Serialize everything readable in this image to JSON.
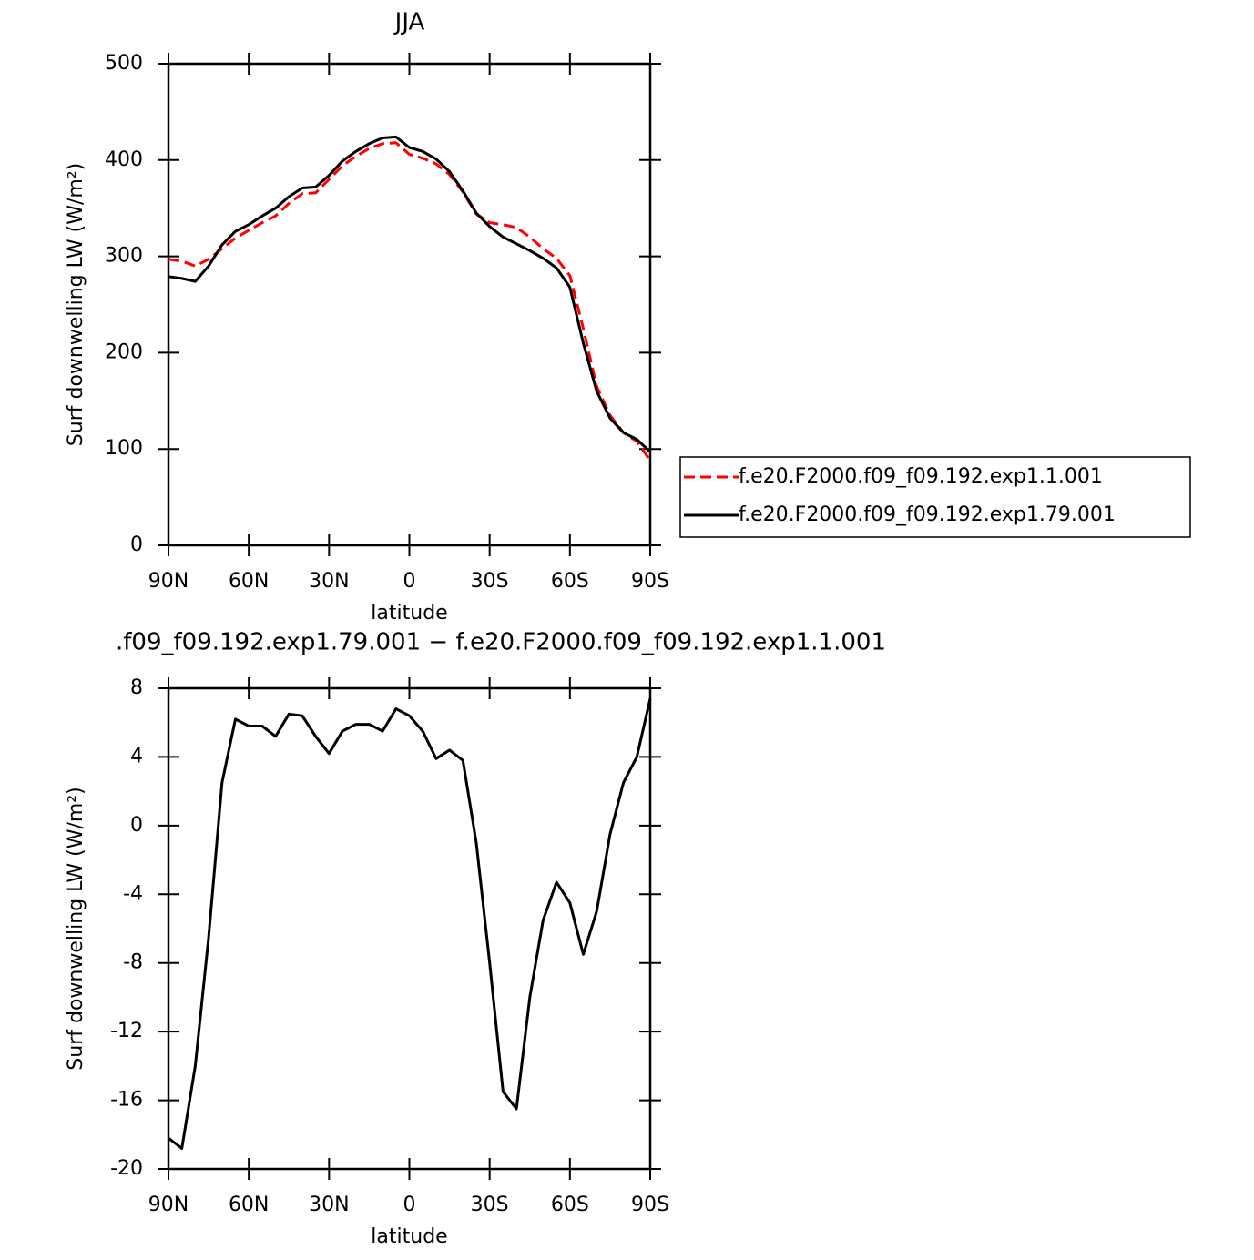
{
  "chart_data": [
    {
      "type": "line",
      "title": "JJA",
      "xlabel": "latitude",
      "ylabel": "Surf downwelling LW (W/m²)",
      "x": [
        90,
        85,
        80,
        75,
        70,
        65,
        60,
        55,
        50,
        45,
        40,
        35,
        30,
        25,
        20,
        15,
        10,
        5,
        0,
        -5,
        -10,
        -15,
        -20,
        -25,
        -30,
        -35,
        -40,
        -45,
        -50,
        -55,
        -60,
        -65,
        -70,
        -75,
        -80,
        -85,
        -90
      ],
      "series": [
        {
          "name": "f.e20.F2000.f09_f09.192.exp1.1.001",
          "color": "#ff0000",
          "line_style": "dashed",
          "values": [
            297,
            295,
            290,
            297,
            308,
            319,
            327,
            335,
            342,
            355,
            365,
            366,
            380,
            394,
            404,
            412,
            417,
            418,
            406,
            402,
            396,
            385,
            367,
            344,
            335,
            333,
            330,
            320,
            308,
            298,
            280,
            225,
            165,
            135,
            117,
            108,
            88
          ]
        },
        {
          "name": "f.e20.F2000.f09_f09.192.exp1.79.001",
          "color": "#000000",
          "line_style": "solid",
          "values": [
            279,
            277,
            274,
            290,
            312,
            326,
            333,
            342,
            350,
            362,
            371,
            372,
            384,
            399,
            409,
            417,
            423,
            424,
            413,
            409,
            401,
            388,
            368,
            345,
            331,
            320,
            313,
            306,
            298,
            288,
            268,
            210,
            160,
            132,
            117,
            110,
            97
          ]
        }
      ],
      "xlim": [
        90,
        -90
      ],
      "xticks": [
        {
          "value": 90,
          "label": "90N"
        },
        {
          "value": 60,
          "label": "60N"
        },
        {
          "value": 30,
          "label": "30N"
        },
        0,
        {
          "value": -30,
          "label": "30S"
        },
        {
          "value": -60,
          "label": "60S"
        },
        {
          "value": -90,
          "label": "90S"
        }
      ],
      "ylim": [
        0,
        500
      ],
      "yticks": [
        0,
        100,
        200,
        300,
        400,
        500
      ],
      "grid": false,
      "legend": "right"
    },
    {
      "type": "line",
      "title": ".f09_f09.192.exp1.79.001 − f.e20.F2000.f09_f09.192.exp1.1.001",
      "xlabel": "latitude",
      "ylabel": "Surf downwelling LW (W/m²)",
      "x": [
        90,
        85,
        80,
        75,
        70,
        65,
        60,
        55,
        50,
        45,
        40,
        35,
        30,
        25,
        20,
        15,
        10,
        5,
        0,
        -5,
        -10,
        -15,
        -20,
        -25,
        -30,
        -35,
        -40,
        -45,
        -50,
        -55,
        -60,
        -65,
        -70,
        -75,
        -80,
        -85,
        -90
      ],
      "values": [
        -18.2,
        -18.8,
        -14.0,
        -6.5,
        2.5,
        6.2,
        5.8,
        5.8,
        5.2,
        6.5,
        6.4,
        5.2,
        4.2,
        5.5,
        5.9,
        5.9,
        5.5,
        6.8,
        6.4,
        5.5,
        3.9,
        4.4,
        3.8,
        -1,
        -8,
        -15.5,
        -16.5,
        -10,
        -5.5,
        -3.3,
        -4.5,
        -7.5,
        -5,
        -0.5,
        2.5,
        4.0,
        7.4
      ],
      "color": "#000000",
      "xlim": [
        90,
        -90
      ],
      "xticks": [
        {
          "value": 90,
          "label": "90N"
        },
        {
          "value": 60,
          "label": "60N"
        },
        {
          "value": 30,
          "label": "30N"
        },
        0,
        {
          "value": -30,
          "label": "30S"
        },
        {
          "value": -60,
          "label": "60S"
        },
        {
          "value": -90,
          "label": "90S"
        }
      ],
      "ylim": [
        -20,
        8
      ],
      "yticks": [
        -20,
        -16,
        -12,
        -8,
        -4,
        0,
        4,
        8
      ],
      "grid": false
    }
  ]
}
